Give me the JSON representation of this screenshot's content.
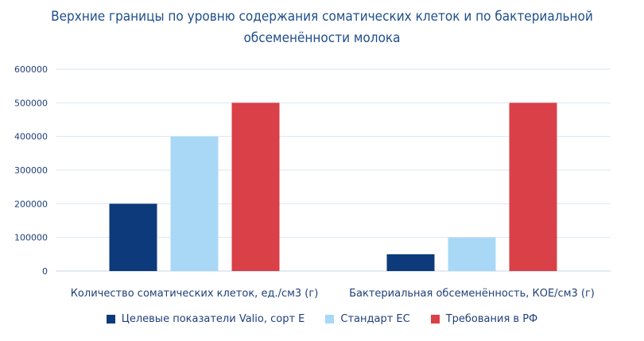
{
  "chart_data": {
    "type": "bar",
    "title": "Верхние границы по уровню содержания соматических клеток и по бактериальной обсеменённости молока",
    "categories": [
      "Количество соматических клеток, ед./см3 (г)",
      "Бактериальная обсеменённость, КОЕ/см3 (г)"
    ],
    "series": [
      {
        "name": "Целевые показатели Valio, сорт Е",
        "color": "#0d3a7a",
        "values": [
          200000,
          50000
        ]
      },
      {
        "name": "Стандарт ЕС",
        "color": "#a9d8f7",
        "values": [
          400000,
          100000
        ]
      },
      {
        "name": "Требования в РФ",
        "color": "#d94048",
        "values": [
          500000,
          500000
        ]
      }
    ],
    "yticks": [
      "0",
      "100000",
      "200000",
      "300000",
      "400000",
      "500000",
      "600000"
    ],
    "ylim": [
      0,
      600000
    ],
    "grid": true,
    "legend": "bottom"
  }
}
